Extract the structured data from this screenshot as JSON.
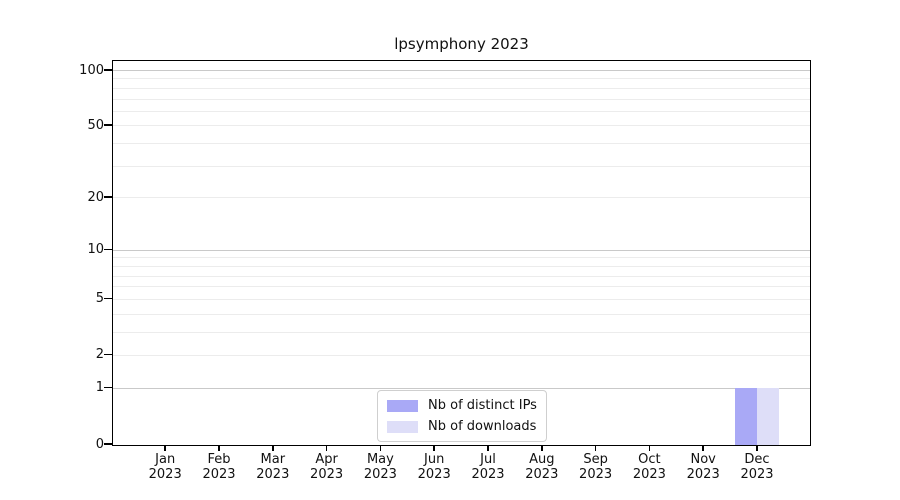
{
  "chart_data": {
    "type": "bar",
    "title": "lpsymphony 2023",
    "categories": [
      "Jan 2023",
      "Feb 2023",
      "Mar 2023",
      "Apr 2023",
      "May 2023",
      "Jun 2023",
      "Jul 2023",
      "Aug 2023",
      "Sep 2023",
      "Oct 2023",
      "Nov 2023",
      "Dec 2023"
    ],
    "series": [
      {
        "name": "Nb of distinct IPs",
        "color": "#a9a9f6",
        "values": [
          0,
          0,
          0,
          0,
          0,
          0,
          0,
          0,
          0,
          0,
          0,
          1
        ]
      },
      {
        "name": "Nb of downloads",
        "color": "#dedef8",
        "values": [
          0,
          0,
          0,
          0,
          0,
          0,
          0,
          0,
          0,
          0,
          0,
          1
        ]
      }
    ],
    "xlabel": "",
    "ylabel": "",
    "yscale": "log1p",
    "ylim": [
      0,
      100
    ],
    "yticks": [
      0,
      1,
      2,
      5,
      10,
      20,
      50,
      100
    ],
    "grid": true,
    "grid_major_values": [
      1,
      10,
      100
    ],
    "grid_minor_values": [
      2,
      3,
      4,
      5,
      6,
      7,
      8,
      9,
      20,
      30,
      40,
      50,
      60,
      70,
      80,
      90
    ],
    "grid_major_color": "#c9c9c9",
    "grid_minor_color": "#ececec",
    "axis_color": "#000000",
    "background_color": "#ffffff",
    "legend_position": "lower center"
  }
}
